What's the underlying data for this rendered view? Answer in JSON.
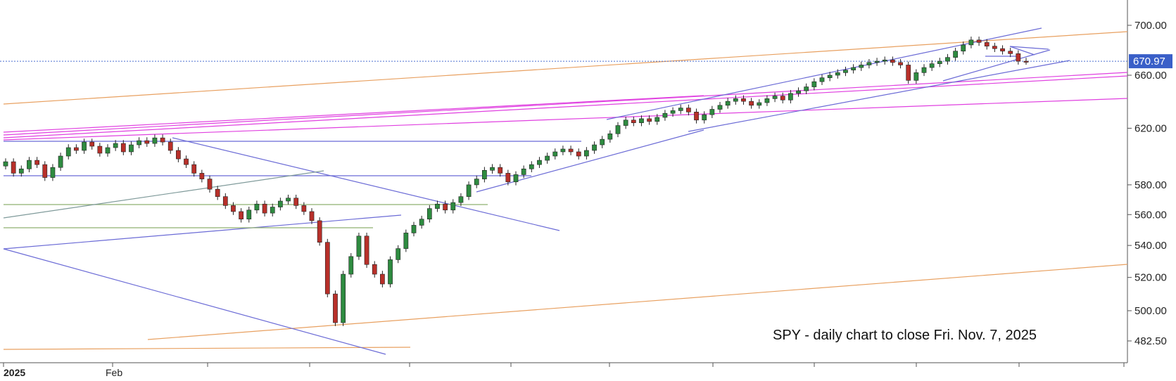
{
  "chart_data": {
    "type": "candlestick",
    "symbol": "SPY",
    "annotation": "SPY - daily chart to close Fri. Nov. 7, 2025",
    "y_axis": {
      "scale": "log",
      "ticks": [
        "700.00",
        "660.00",
        "620.00",
        "580.00",
        "560.00",
        "540.00",
        "520.00",
        "500.00",
        "482.50"
      ],
      "last_price_label": "670.97",
      "last_price": 670.97
    },
    "x_axis": {
      "labels": [
        {
          "text": "2025",
          "bold": true
        },
        {
          "text": "Feb",
          "bold": false
        }
      ]
    },
    "candles_approx": [
      [
        593,
        596
      ],
      [
        596,
        588
      ],
      [
        588,
        591
      ],
      [
        591,
        597
      ],
      [
        597,
        594
      ],
      [
        594,
        585
      ],
      [
        585,
        592
      ],
      [
        592,
        600
      ],
      [
        600,
        606
      ],
      [
        606,
        604
      ],
      [
        604,
        610
      ],
      [
        610,
        607
      ],
      [
        607,
        602
      ],
      [
        602,
        606
      ],
      [
        606,
        609
      ],
      [
        609,
        603
      ],
      [
        603,
        608
      ],
      [
        608,
        611
      ],
      [
        611,
        609
      ],
      [
        609,
        613
      ],
      [
        613,
        610
      ],
      [
        610,
        604
      ],
      [
        604,
        598
      ],
      [
        598,
        594
      ],
      [
        594,
        588
      ],
      [
        588,
        584
      ],
      [
        584,
        577
      ],
      [
        577,
        572
      ],
      [
        572,
        566
      ],
      [
        566,
        562
      ],
      [
        562,
        557
      ],
      [
        557,
        563
      ],
      [
        563,
        567
      ],
      [
        567,
        561
      ],
      [
        561,
        565
      ],
      [
        565,
        569
      ],
      [
        569,
        571
      ],
      [
        571,
        566
      ],
      [
        566,
        562
      ],
      [
        562,
        556
      ],
      [
        556,
        542
      ],
      [
        542,
        510
      ],
      [
        510,
        493
      ],
      [
        493,
        522
      ],
      [
        522,
        533
      ],
      [
        533,
        546
      ],
      [
        546,
        528
      ],
      [
        528,
        522
      ],
      [
        522,
        516
      ],
      [
        516,
        531
      ],
      [
        531,
        538
      ],
      [
        538,
        548
      ],
      [
        548,
        553
      ],
      [
        553,
        557
      ],
      [
        557,
        564
      ],
      [
        564,
        567
      ],
      [
        567,
        563
      ],
      [
        563,
        568
      ],
      [
        568,
        572
      ],
      [
        572,
        580
      ],
      [
        580,
        584
      ],
      [
        584,
        590
      ],
      [
        590,
        592
      ],
      [
        592,
        588
      ],
      [
        588,
        582
      ],
      [
        582,
        587
      ],
      [
        587,
        591
      ],
      [
        591,
        594
      ],
      [
        594,
        597
      ],
      [
        597,
        600
      ],
      [
        600,
        603
      ],
      [
        603,
        605
      ],
      [
        605,
        603
      ],
      [
        603,
        600
      ],
      [
        600,
        604
      ],
      [
        604,
        608
      ],
      [
        608,
        612
      ],
      [
        612,
        616
      ],
      [
        616,
        622
      ],
      [
        622,
        626
      ],
      [
        626,
        624
      ],
      [
        624,
        627
      ],
      [
        627,
        625
      ],
      [
        625,
        628
      ],
      [
        628,
        631
      ],
      [
        631,
        633
      ],
      [
        633,
        635
      ],
      [
        635,
        632
      ],
      [
        632,
        626
      ],
      [
        626,
        630
      ],
      [
        630,
        634
      ],
      [
        634,
        637
      ],
      [
        637,
        640
      ],
      [
        640,
        642
      ],
      [
        642,
        640
      ],
      [
        640,
        637
      ],
      [
        637,
        639
      ],
      [
        639,
        642
      ],
      [
        642,
        644
      ],
      [
        644,
        641
      ],
      [
        641,
        646
      ],
      [
        646,
        648
      ],
      [
        648,
        651
      ],
      [
        651,
        655
      ],
      [
        655,
        658
      ],
      [
        658,
        660
      ],
      [
        660,
        662
      ],
      [
        662,
        664
      ],
      [
        664,
        666
      ],
      [
        666,
        668
      ],
      [
        668,
        670
      ],
      [
        670,
        671
      ],
      [
        671,
        672
      ],
      [
        672,
        670
      ],
      [
        670,
        668
      ],
      [
        668,
        656
      ],
      [
        656,
        662
      ],
      [
        662,
        666
      ],
      [
        666,
        669
      ],
      [
        669,
        671
      ],
      [
        671,
        674
      ],
      [
        674,
        679
      ],
      [
        679,
        684
      ],
      [
        684,
        688
      ],
      [
        688,
        686
      ],
      [
        686,
        683
      ],
      [
        683,
        681
      ],
      [
        681,
        679
      ],
      [
        679,
        677
      ],
      [
        677,
        671
      ],
      [
        671,
        670.97
      ]
    ],
    "trendlines_note": "support/resistance channels drawn in purple, magenta, orange, green, blue"
  }
}
